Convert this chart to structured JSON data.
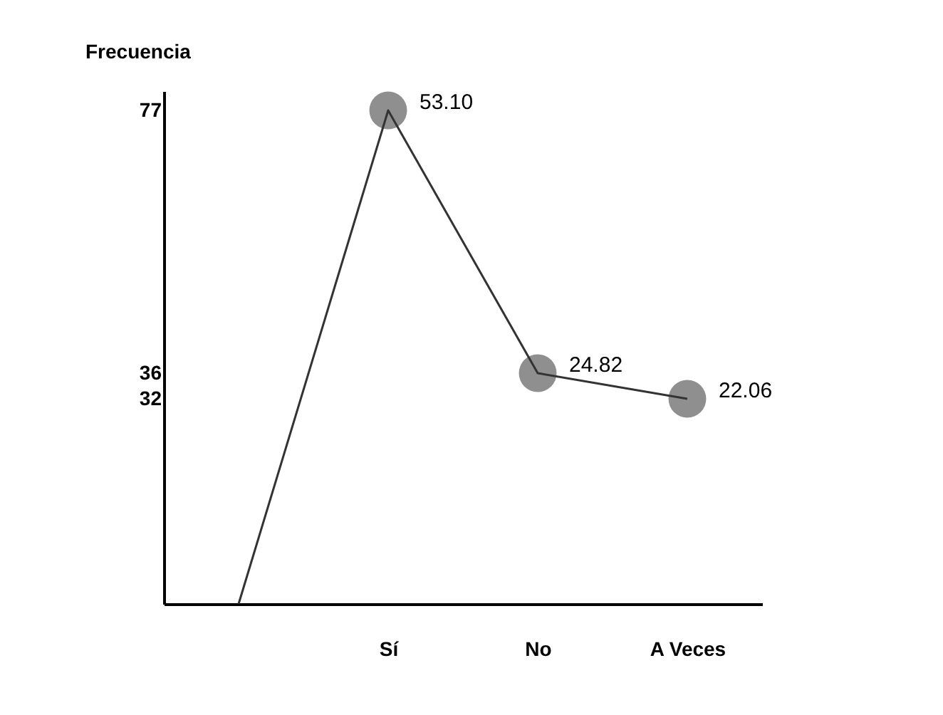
{
  "chart_data": {
    "type": "line",
    "ylabel": "Frecuencia",
    "categories": [
      null,
      "Sí",
      "No",
      "A Veces"
    ],
    "series": [
      {
        "color": "#333333",
        "values": [
          0,
          77,
          36,
          32
        ]
      }
    ],
    "annotations": [
      {
        "text": "53.10",
        "x": "Sí",
        "y": 77
      },
      {
        "text": "24.82",
        "x": "No",
        "y": 36
      },
      {
        "text": "22.06",
        "x": "A Veces",
        "y": 32
      }
    ],
    "ylim": [
      0,
      80
    ],
    "yticks": [
      77,
      36,
      32
    ],
    "grid": false,
    "marker": "circle",
    "line_style": "solid"
  }
}
